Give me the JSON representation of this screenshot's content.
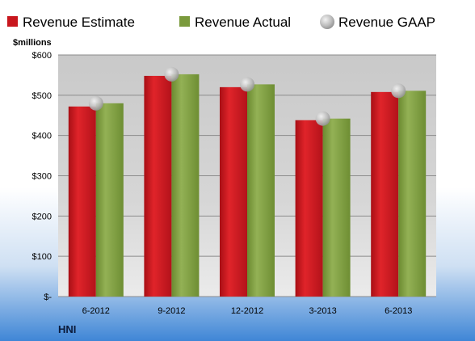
{
  "chart_data": {
    "type": "bar",
    "categories": [
      "6-2012",
      "9-2012",
      "12-2012",
      "3-2013",
      "6-2013"
    ],
    "series": [
      {
        "name": "Revenue Estimate",
        "kind": "bar",
        "color": "#c8161d",
        "values": [
          472,
          548,
          520,
          438,
          508
        ]
      },
      {
        "name": "Revenue Actual",
        "kind": "bar",
        "color": "#7a9a3c",
        "values": [
          480,
          552,
          527,
          442,
          511
        ]
      },
      {
        "name": "Revenue GAAP",
        "kind": "marker",
        "color": "#c0c0c0",
        "values": [
          480,
          552,
          527,
          442,
          511
        ]
      }
    ],
    "y_unit_label": "$millions",
    "yticks": [
      {
        "value": 0,
        "label": "$-"
      },
      {
        "value": 100,
        "label": "$100"
      },
      {
        "value": 200,
        "label": "$200"
      },
      {
        "value": 300,
        "label": "$300"
      },
      {
        "value": 400,
        "label": "$400"
      },
      {
        "value": 500,
        "label": "$500"
      },
      {
        "value": 600,
        "label": "$600"
      }
    ],
    "ylim": [
      0,
      600
    ],
    "grid": true,
    "legend_position": "top"
  },
  "footer": {
    "ticker": "HNI"
  }
}
